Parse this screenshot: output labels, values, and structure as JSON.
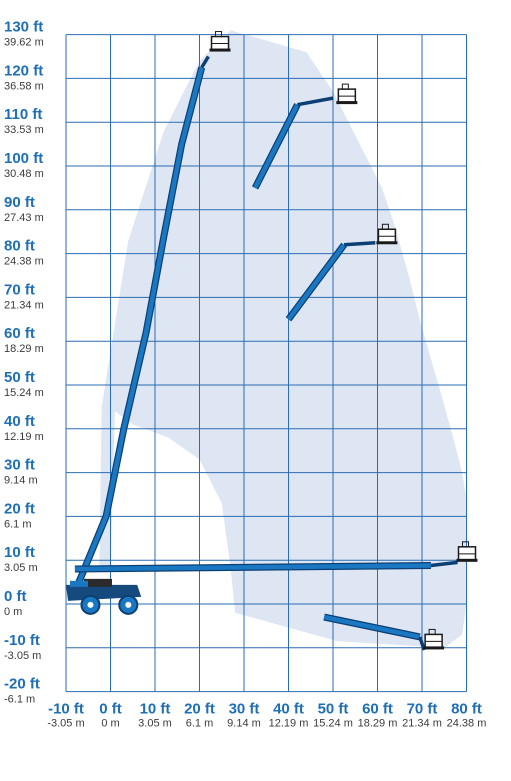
{
  "colors": {
    "envelope": "#dfe6f3",
    "grid": "#2a6db4",
    "boom": "#1a78c2",
    "boom_edge": "#0c3f73",
    "chassis": "#16497d",
    "wheel": "#1a78c2",
    "ft_text": "#1f6fb5",
    "m_text": "#3b3b3b"
  },
  "chart_data": {
    "type": "diagram",
    "grid": true,
    "y_axis": {
      "range": [
        -20,
        130
      ],
      "ticks": [
        {
          "ft": 130,
          "label_ft": "130 ft",
          "label_m": "39.62 m"
        },
        {
          "ft": 120,
          "label_ft": "120 ft",
          "label_m": "36.58 m"
        },
        {
          "ft": 110,
          "label_ft": "110 ft",
          "label_m": "33.53 m"
        },
        {
          "ft": 100,
          "label_ft": "100 ft",
          "label_m": "30.48 m"
        },
        {
          "ft": 90,
          "label_ft": "90 ft",
          "label_m": "27.43 m"
        },
        {
          "ft": 80,
          "label_ft": "80 ft",
          "label_m": "24.38 m"
        },
        {
          "ft": 70,
          "label_ft": "70 ft",
          "label_m": "21.34 m"
        },
        {
          "ft": 60,
          "label_ft": "60 ft",
          "label_m": "18.29 m"
        },
        {
          "ft": 50,
          "label_ft": "50 ft",
          "label_m": "15.24 m"
        },
        {
          "ft": 40,
          "label_ft": "40 ft",
          "label_m": "12.19 m"
        },
        {
          "ft": 30,
          "label_ft": "30 ft",
          "label_m": "9.14 m"
        },
        {
          "ft": 20,
          "label_ft": "20 ft",
          "label_m": "6.1 m"
        },
        {
          "ft": 10,
          "label_ft": "10 ft",
          "label_m": "3.05 m"
        },
        {
          "ft": 0,
          "label_ft": "0 ft",
          "label_m": "0 m"
        },
        {
          "ft": -10,
          "label_ft": "-10 ft",
          "label_m": "-3.05 m"
        },
        {
          "ft": -20,
          "label_ft": "-20 ft",
          "label_m": "-6.1 m"
        }
      ]
    },
    "x_axis": {
      "range": [
        -10,
        80
      ],
      "ticks": [
        {
          "ft": -10,
          "label_ft": "-10 ft",
          "label_m": "-3.05 m"
        },
        {
          "ft": 0,
          "label_ft": "0 ft",
          "label_m": "0 m"
        },
        {
          "ft": 10,
          "label_ft": "10 ft",
          "label_m": "3.05 m"
        },
        {
          "ft": 20,
          "label_ft": "20 ft",
          "label_m": "6.1 m"
        },
        {
          "ft": 30,
          "label_ft": "30 ft",
          "label_m": "9.14 m"
        },
        {
          "ft": 40,
          "label_ft": "40 ft",
          "label_m": "12.19 m"
        },
        {
          "ft": 50,
          "label_ft": "50 ft",
          "label_m": "15.24 m"
        },
        {
          "ft": 60,
          "label_ft": "60 ft",
          "label_m": "18.29 m"
        },
        {
          "ft": 70,
          "label_ft": "70 ft",
          "label_m": "21.34 m"
        },
        {
          "ft": 80,
          "label_ft": "80 ft",
          "label_m": "24.38 m"
        }
      ]
    },
    "envelope": [
      [
        -2.5,
        8
      ],
      [
        -2,
        45
      ],
      [
        4,
        83
      ],
      [
        12,
        108
      ],
      [
        20,
        124
      ],
      [
        27,
        131
      ],
      [
        44,
        126
      ],
      [
        50,
        117
      ],
      [
        55,
        107
      ],
      [
        61,
        95
      ],
      [
        64,
        86
      ],
      [
        67,
        75
      ],
      [
        70,
        63
      ],
      [
        74,
        49
      ],
      [
        77,
        38
      ],
      [
        79,
        30
      ],
      [
        80,
        24
      ],
      [
        80,
        0
      ],
      [
        79,
        -7
      ],
      [
        75,
        -10
      ],
      [
        51,
        -8.5
      ],
      [
        28,
        -2
      ],
      [
        27,
        8
      ],
      [
        25,
        23
      ],
      [
        20,
        33
      ],
      [
        13,
        38
      ],
      [
        5,
        41
      ],
      [
        1,
        44
      ],
      [
        0,
        9
      ]
    ],
    "boom_positions": [
      {
        "name": "max-height",
        "boom": [
          [
            -7.5,
            4
          ],
          [
            -1,
            20
          ],
          [
            3,
            40
          ],
          [
            8,
            62
          ],
          [
            12,
            84
          ],
          [
            16,
            105
          ],
          [
            20.5,
            122.5
          ]
        ],
        "jib": [
          [
            20.5,
            122.5
          ],
          [
            22,
            125
          ]
        ],
        "platform": [
          24.5,
          127.5
        ]
      },
      {
        "name": "upper-mid",
        "boom": [
          [
            32.5,
            95
          ],
          [
            42,
            114
          ]
        ],
        "jib": [
          [
            42,
            114
          ],
          [
            50,
            115.5
          ]
        ],
        "platform": [
          53,
          115.5
        ]
      },
      {
        "name": "mid",
        "boom": [
          [
            40,
            65
          ],
          [
            52.5,
            82
          ]
        ],
        "jib": [
          [
            52.5,
            82
          ],
          [
            59.5,
            82.5
          ]
        ],
        "platform": [
          62,
          83.5
        ]
      },
      {
        "name": "horizontal",
        "boom": [
          [
            -8,
            8
          ],
          [
            72,
            8.8
          ]
        ],
        "jib": [
          [
            72,
            8.8
          ],
          [
            78,
            9.5
          ]
        ],
        "platform": [
          80,
          11
        ]
      },
      {
        "name": "below-grade",
        "boom": [
          [
            48,
            -3
          ],
          [
            69.5,
            -7.5
          ]
        ],
        "jib": [
          [
            69.5,
            -7.5
          ],
          [
            70.5,
            -10.5
          ]
        ],
        "platform": [
          72.5,
          -9
        ]
      }
    ],
    "chassis": {
      "x_range": [
        -10,
        6
      ],
      "deck_y": 3,
      "wheels_x": [
        -4.5,
        4
      ]
    }
  }
}
